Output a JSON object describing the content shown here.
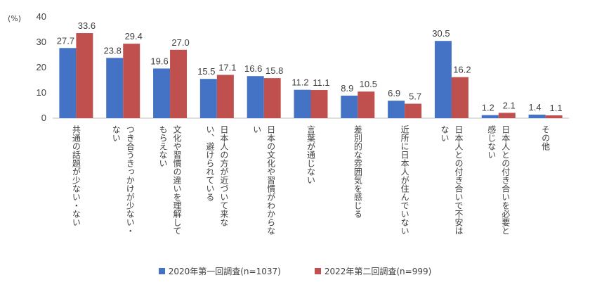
{
  "chart_data": {
    "type": "bar",
    "ylabel": "(%)",
    "ylim": [
      0,
      40
    ],
    "yticks": [
      0,
      10,
      20,
      30,
      40
    ],
    "grid": false,
    "legend_position": "bottom",
    "categories": [
      [
        "共通の話題が少ない・ない"
      ],
      [
        "つき合うきっかけが少ない・",
        "ない"
      ],
      [
        "文化や習慣の違いを理解して",
        "もらえない"
      ],
      [
        "日本人の方が近づいて来な",
        "い、避けられている"
      ],
      [
        "日本の文化や習慣がわからな",
        "い"
      ],
      [
        "言葉が通じない"
      ],
      [
        "差別的な雰囲気を感じる"
      ],
      [
        "近所に日本人が住んでいない"
      ],
      [
        "日本人との付き合いで不安は",
        "ない"
      ],
      [
        "日本人との付き合いを必要と",
        "感じない"
      ],
      [
        "その他"
      ]
    ],
    "series": [
      {
        "name": "2020年第一回調査(n=1037)",
        "color": "#4472c4",
        "values": [
          27.7,
          23.8,
          19.6,
          15.5,
          16.6,
          11.2,
          8.9,
          6.9,
          30.5,
          1.2,
          1.4
        ]
      },
      {
        "name": "2022年第二回調査(n=999)",
        "color": "#c0504d",
        "values": [
          33.6,
          29.4,
          27.0,
          17.1,
          15.8,
          11.1,
          10.5,
          5.7,
          16.2,
          2.1,
          1.1
        ]
      }
    ]
  }
}
